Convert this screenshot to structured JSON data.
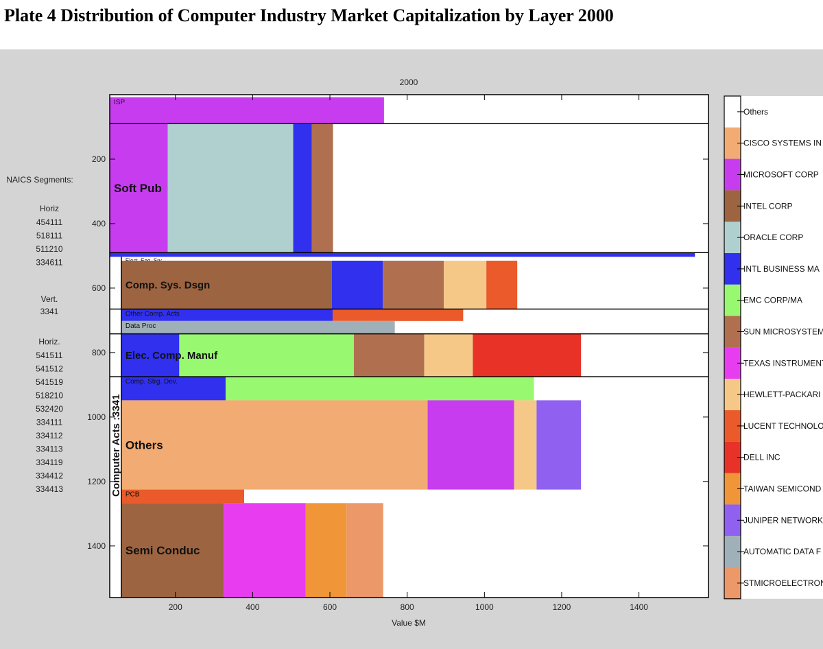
{
  "plate_title": "Plate 4   Distribution of Computer Industry Market Capitalization by Layer 2000",
  "naics": {
    "heading": "NAICS Segments:",
    "horiz_label": "Horiz",
    "horiz_codes": [
      "454111",
      "518111",
      "511210",
      "334611"
    ],
    "vert_label": "Vert.",
    "vert_codes": [
      "3341"
    ],
    "horiz2_label": "Horiz.",
    "horiz2_codes": [
      "541511",
      "541512",
      "541519",
      "518210",
      "532420",
      "334111",
      "334112",
      "334113",
      "334119",
      "334412",
      "334413"
    ]
  },
  "colors": {
    "Others": "#ffffff",
    "CISCO": "#f2ab72",
    "MICROSOFT": "#c83cf0",
    "INTEL": "#9c6440",
    "ORACLE": "#b0d0d0",
    "IBM": "#3030ee",
    "EMC": "#98f870",
    "SUN": "#b07050",
    "TEXAS": "#e83cf0",
    "HP": "#f6c888",
    "LUCENT": "#ea5a2a",
    "DELL": "#e83228",
    "TAIWAN": "#f09638",
    "JUNIPER": "#9060f0",
    "ADP": "#a0b0b8",
    "STMICRO": "#ec9868"
  },
  "chart_data": {
    "type": "bar",
    "title": "2000",
    "xlabel": "Value $M",
    "vertical_label": "Computer Acts :3341",
    "xlim": [
      30,
      1580
    ],
    "ylim": [
      0,
      1560
    ],
    "xticks": [
      200,
      400,
      600,
      800,
      1000,
      1200,
      1400
    ],
    "yticks": [
      200,
      400,
      600,
      800,
      1000,
      1200,
      1400
    ],
    "legend_position": "right",
    "legend": [
      {
        "key": "Others",
        "label": "Others"
      },
      {
        "key": "CISCO",
        "label": "CISCO SYSTEMS IN"
      },
      {
        "key": "MICROSOFT",
        "label": "MICROSOFT CORP"
      },
      {
        "key": "INTEL",
        "label": "INTEL CORP"
      },
      {
        "key": "ORACLE",
        "label": "ORACLE CORP"
      },
      {
        "key": "IBM",
        "label": "INTL BUSINESS MA"
      },
      {
        "key": "EMC",
        "label": "EMC CORP/MA"
      },
      {
        "key": "SUN",
        "label": "SUN MICROSYSTEM"
      },
      {
        "key": "TEXAS",
        "label": "TEXAS INSTRUMENT"
      },
      {
        "key": "HP",
        "label": "HEWLETT-PACKARI"
      },
      {
        "key": "LUCENT",
        "label": "LUCENT TECHNOLO"
      },
      {
        "key": "DELL",
        "label": "DELL INC"
      },
      {
        "key": "TAIWAN",
        "label": "TAIWAN SEMICOND"
      },
      {
        "key": "JUNIPER",
        "label": "JUNIPER NETWORK"
      },
      {
        "key": "ADP",
        "label": "AUTOMATIC DATA F"
      },
      {
        "key": "STMICRO",
        "label": "STMICROELECTRON"
      }
    ],
    "segments": [
      {
        "label": "",
        "y0": 0,
        "y1": 8,
        "x0": 30,
        "separator": false,
        "pieces": []
      },
      {
        "label": "ISP",
        "y0": 8,
        "y1": 90,
        "x0": 30,
        "separator": true,
        "label_size": "small",
        "pieces": [
          {
            "key": "MICROSOFT",
            "from": 30,
            "to": 740
          }
        ]
      },
      {
        "label": "Soft Pub",
        "y0": 90,
        "y1": 490,
        "x0": 30,
        "separator": true,
        "label_size": "large",
        "pieces": [
          {
            "key": "MICROSOFT",
            "from": 30,
            "to": 180
          },
          {
            "key": "ORACLE",
            "from": 180,
            "to": 505
          },
          {
            "key": "IBM",
            "from": 505,
            "to": 553
          },
          {
            "key": "SUN",
            "from": 553,
            "to": 608
          }
        ]
      },
      {
        "label": "",
        "y0": 490,
        "y1": 503,
        "x0": 30,
        "separator": false,
        "pieces": [
          {
            "key": "IBM",
            "from": 30,
            "to": 1545
          }
        ]
      },
      {
        "label": "Elect. Eng. Srv",
        "y0": 503,
        "y1": 515,
        "x0": 60,
        "separator": false,
        "label_size": "tiny",
        "pieces": []
      },
      {
        "label": "Comp. Sys. Dsgn",
        "y0": 515,
        "y1": 665,
        "x0": 60,
        "separator": true,
        "label_size": "medium",
        "pieces": [
          {
            "key": "INTEL",
            "from": 60,
            "to": 605
          },
          {
            "key": "IBM",
            "from": 605,
            "to": 737
          },
          {
            "key": "SUN",
            "from": 737,
            "to": 895
          },
          {
            "key": "HP",
            "from": 895,
            "to": 1005
          },
          {
            "key": "LUCENT",
            "from": 1005,
            "to": 1085
          }
        ]
      },
      {
        "label": "Other Comp. Acts",
        "y0": 665,
        "y1": 702,
        "x0": 60,
        "separator": false,
        "label_size": "small",
        "pieces": [
          {
            "key": "IBM",
            "from": 60,
            "to": 607
          },
          {
            "key": "LUCENT",
            "from": 607,
            "to": 945
          }
        ]
      },
      {
        "label": "Data Proc",
        "y0": 702,
        "y1": 742,
        "x0": 60,
        "separator": true,
        "label_size": "small",
        "pieces": [
          {
            "key": "ADP",
            "from": 60,
            "to": 768
          }
        ]
      },
      {
        "label": "Elec. Comp. Manuf",
        "y0": 742,
        "y1": 875,
        "x0": 60,
        "separator": true,
        "label_size": "medium",
        "pieces": [
          {
            "key": "IBM",
            "from": 60,
            "to": 210
          },
          {
            "key": "EMC",
            "from": 210,
            "to": 662
          },
          {
            "key": "SUN",
            "from": 662,
            "to": 844
          },
          {
            "key": "HP",
            "from": 844,
            "to": 970
          },
          {
            "key": "DELL",
            "from": 970,
            "to": 1250
          }
        ]
      },
      {
        "label": "Comp. Strg. Dev.",
        "y0": 875,
        "y1": 948,
        "x0": 60,
        "separator": false,
        "label_size": "small",
        "pieces": [
          {
            "key": "IBM",
            "from": 60,
            "to": 330
          },
          {
            "key": "EMC",
            "from": 330,
            "to": 1128
          }
        ]
      },
      {
        "label": "Others",
        "y0": 948,
        "y1": 1225,
        "x0": 60,
        "separator": false,
        "label_size": "large",
        "pieces": [
          {
            "key": "CISCO",
            "from": 60,
            "to": 853
          },
          {
            "key": "MICROSOFT",
            "from": 853,
            "to": 1077
          },
          {
            "key": "HP",
            "from": 1077,
            "to": 1135
          },
          {
            "key": "JUNIPER",
            "from": 1135,
            "to": 1250
          }
        ]
      },
      {
        "label": "PCB",
        "y0": 1225,
        "y1": 1267,
        "x0": 60,
        "separator": false,
        "label_size": "small",
        "pieces": [
          {
            "key": "LUCENT",
            "from": 60,
            "to": 378
          }
        ]
      },
      {
        "label": "Semi Conduc",
        "y0": 1267,
        "y1": 1560,
        "x0": 60,
        "separator": false,
        "label_size": "large",
        "pieces": [
          {
            "key": "INTEL",
            "from": 60,
            "to": 325
          },
          {
            "key": "TEXAS",
            "from": 325,
            "to": 537
          },
          {
            "key": "TAIWAN",
            "from": 537,
            "to": 643
          },
          {
            "key": "STMICRO",
            "from": 643,
            "to": 738
          }
        ]
      }
    ]
  }
}
